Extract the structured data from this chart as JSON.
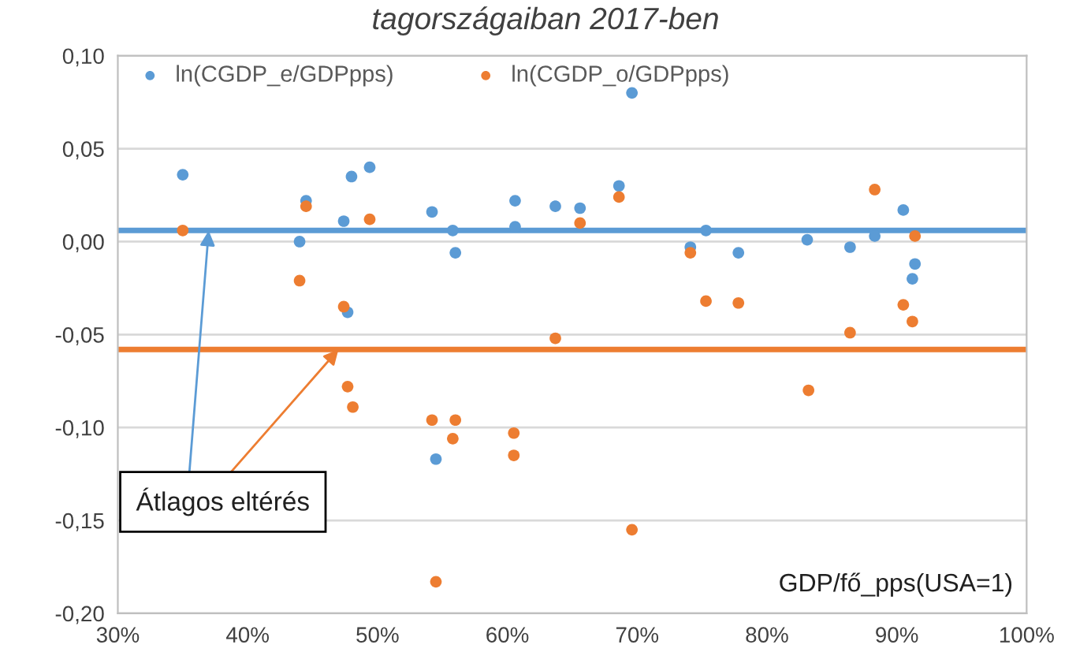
{
  "chart_data": {
    "type": "scatter",
    "title": "tagországaiban 2017-ben",
    "xlabel": "GDP/fő_pps(USA=1)",
    "annotations": [
      {
        "text": "Átlagos eltérés",
        "x": 0.37,
        "y": 0.006
      }
    ],
    "xlim": [
      0.3,
      1.0
    ],
    "xticks": [
      {
        "value": 0.3,
        "label": "30%"
      },
      {
        "value": 0.4,
        "label": "40%"
      },
      {
        "value": 0.5,
        "label": "50%"
      },
      {
        "value": 0.6,
        "label": "60%"
      },
      {
        "value": 0.7,
        "label": "70%"
      },
      {
        "value": 0.8,
        "label": "80%"
      },
      {
        "value": 0.9,
        "label": "90%"
      },
      {
        "value": 1.0,
        "label": "100%"
      }
    ],
    "ylim": [
      -0.2,
      0.1
    ],
    "yticks": [
      {
        "value": -0.2,
        "label": "-0,20"
      },
      {
        "value": -0.15,
        "label": "-0,15"
      },
      {
        "value": -0.1,
        "label": "-0,10"
      },
      {
        "value": -0.05,
        "label": "-0,05"
      },
      {
        "value": 0.0,
        "label": "0,00"
      },
      {
        "value": 0.05,
        "label": "0,05"
      },
      {
        "value": 0.1,
        "label": "0,10"
      }
    ],
    "grid": "y",
    "legend": "top left",
    "marker": "circle",
    "ref_lines": [
      {
        "axis": "y",
        "value": 0.006,
        "color": "#5b9bd5"
      },
      {
        "axis": "y",
        "value": -0.058,
        "color": "#ed7d31"
      }
    ],
    "series": [
      {
        "name": "ln(CGDP_e/GDPpps)",
        "color": "#5b9bd5",
        "x": [
          0.35,
          0.445,
          0.474,
          0.48,
          0.494,
          0.542,
          0.44,
          0.477,
          0.558,
          0.56,
          0.606,
          0.606,
          0.637,
          0.656,
          0.686,
          0.696,
          0.741,
          0.753,
          0.778,
          0.831,
          0.864,
          0.883,
          0.905,
          0.914,
          0.912,
          0.545
        ],
        "values": [
          0.036,
          0.022,
          0.011,
          0.035,
          0.04,
          0.016,
          0.0,
          -0.038,
          0.006,
          -0.006,
          0.022,
          0.008,
          0.019,
          0.018,
          0.03,
          0.08,
          -0.003,
          0.006,
          -0.006,
          0.001,
          -0.003,
          0.003,
          0.017,
          -0.012,
          -0.02,
          -0.117
        ]
      },
      {
        "name": "ln(CGDP_o/GDPpps)",
        "color": "#ed7d31",
        "x": [
          0.35,
          0.445,
          0.494,
          0.44,
          0.474,
          0.656,
          0.686,
          0.741,
          0.753,
          0.778,
          0.637,
          0.883,
          0.914,
          0.905,
          0.912,
          0.864,
          0.477,
          0.481,
          0.542,
          0.56,
          0.558,
          0.605,
          0.605,
          0.545,
          0.696,
          0.832
        ],
        "values": [
          0.006,
          0.019,
          0.012,
          -0.021,
          -0.035,
          0.01,
          0.024,
          -0.006,
          -0.032,
          -0.033,
          -0.052,
          0.028,
          0.003,
          -0.034,
          -0.043,
          -0.049,
          -0.078,
          -0.089,
          -0.096,
          -0.096,
          -0.106,
          -0.103,
          -0.115,
          -0.183,
          -0.155,
          -0.08
        ]
      }
    ]
  }
}
